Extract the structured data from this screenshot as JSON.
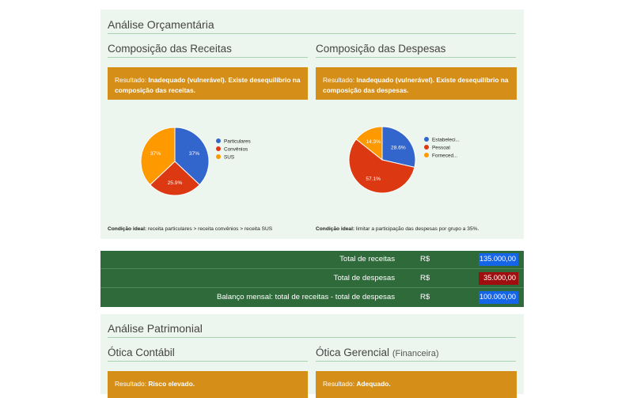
{
  "budget": {
    "title": "Análise Orçamentária",
    "receitas": {
      "title": "Composição das Receitas",
      "result_prefix": "Resultado: ",
      "result_text": "Inadequado (vulnerável). Existe desequilíbrio na composição das receitas.",
      "condition_label": "Condição ideal:",
      "condition_text": " receita particulares > receita convênios > receita SUS"
    },
    "despesas": {
      "title": "Composição das Despesas",
      "result_prefix": "Resultado: ",
      "result_text": "Inadequado (vulnerável). Existe desequilíbrio na composição das despesas.",
      "condition_label": "Condição ideal:",
      "condition_text": " limitar a participação das despesas por grupo a 35%."
    }
  },
  "chart_data": [
    {
      "type": "pie",
      "labels": [
        "Particulares",
        "Convênios",
        "SUS"
      ],
      "values": [
        37,
        25.9,
        37
      ],
      "value_labels": [
        "37%",
        "25.9%",
        "37%"
      ],
      "colors": [
        "#3366cc",
        "#dc3912",
        "#ff9900"
      ],
      "legend": "right"
    },
    {
      "type": "pie",
      "labels": [
        "Estabeleci...",
        "Pessoal",
        "Forneced..."
      ],
      "values": [
        28.6,
        57.1,
        14.3
      ],
      "value_labels": [
        "28.6%",
        "57.1%",
        "14.3%"
      ],
      "colors": [
        "#3366cc",
        "#dc3912",
        "#ff9900"
      ],
      "legend": "right"
    }
  ],
  "totals": {
    "rows": [
      {
        "label": "Total de receitas",
        "currency": "R$",
        "value": "135.000,00",
        "color": "#1565e8"
      },
      {
        "label": "Total de despesas",
        "currency": "R$",
        "value": "35.000,00",
        "color": "#a00f0f"
      },
      {
        "label": "Balanço mensal: total de receitas - total de despesas",
        "currency": "R$",
        "value": "100.000,00",
        "color": "#1565e8"
      }
    ]
  },
  "patrimonial": {
    "title": "Análise Patrimonial",
    "contabil": {
      "title": "Ótica Contábil",
      "result_prefix": "Resultado: ",
      "result_text": "Risco elevado."
    },
    "gerencial": {
      "title": "Ótica Gerencial",
      "title_note": "(Financeira)",
      "result_prefix": "Resultado: ",
      "result_text": "Adequado."
    }
  }
}
